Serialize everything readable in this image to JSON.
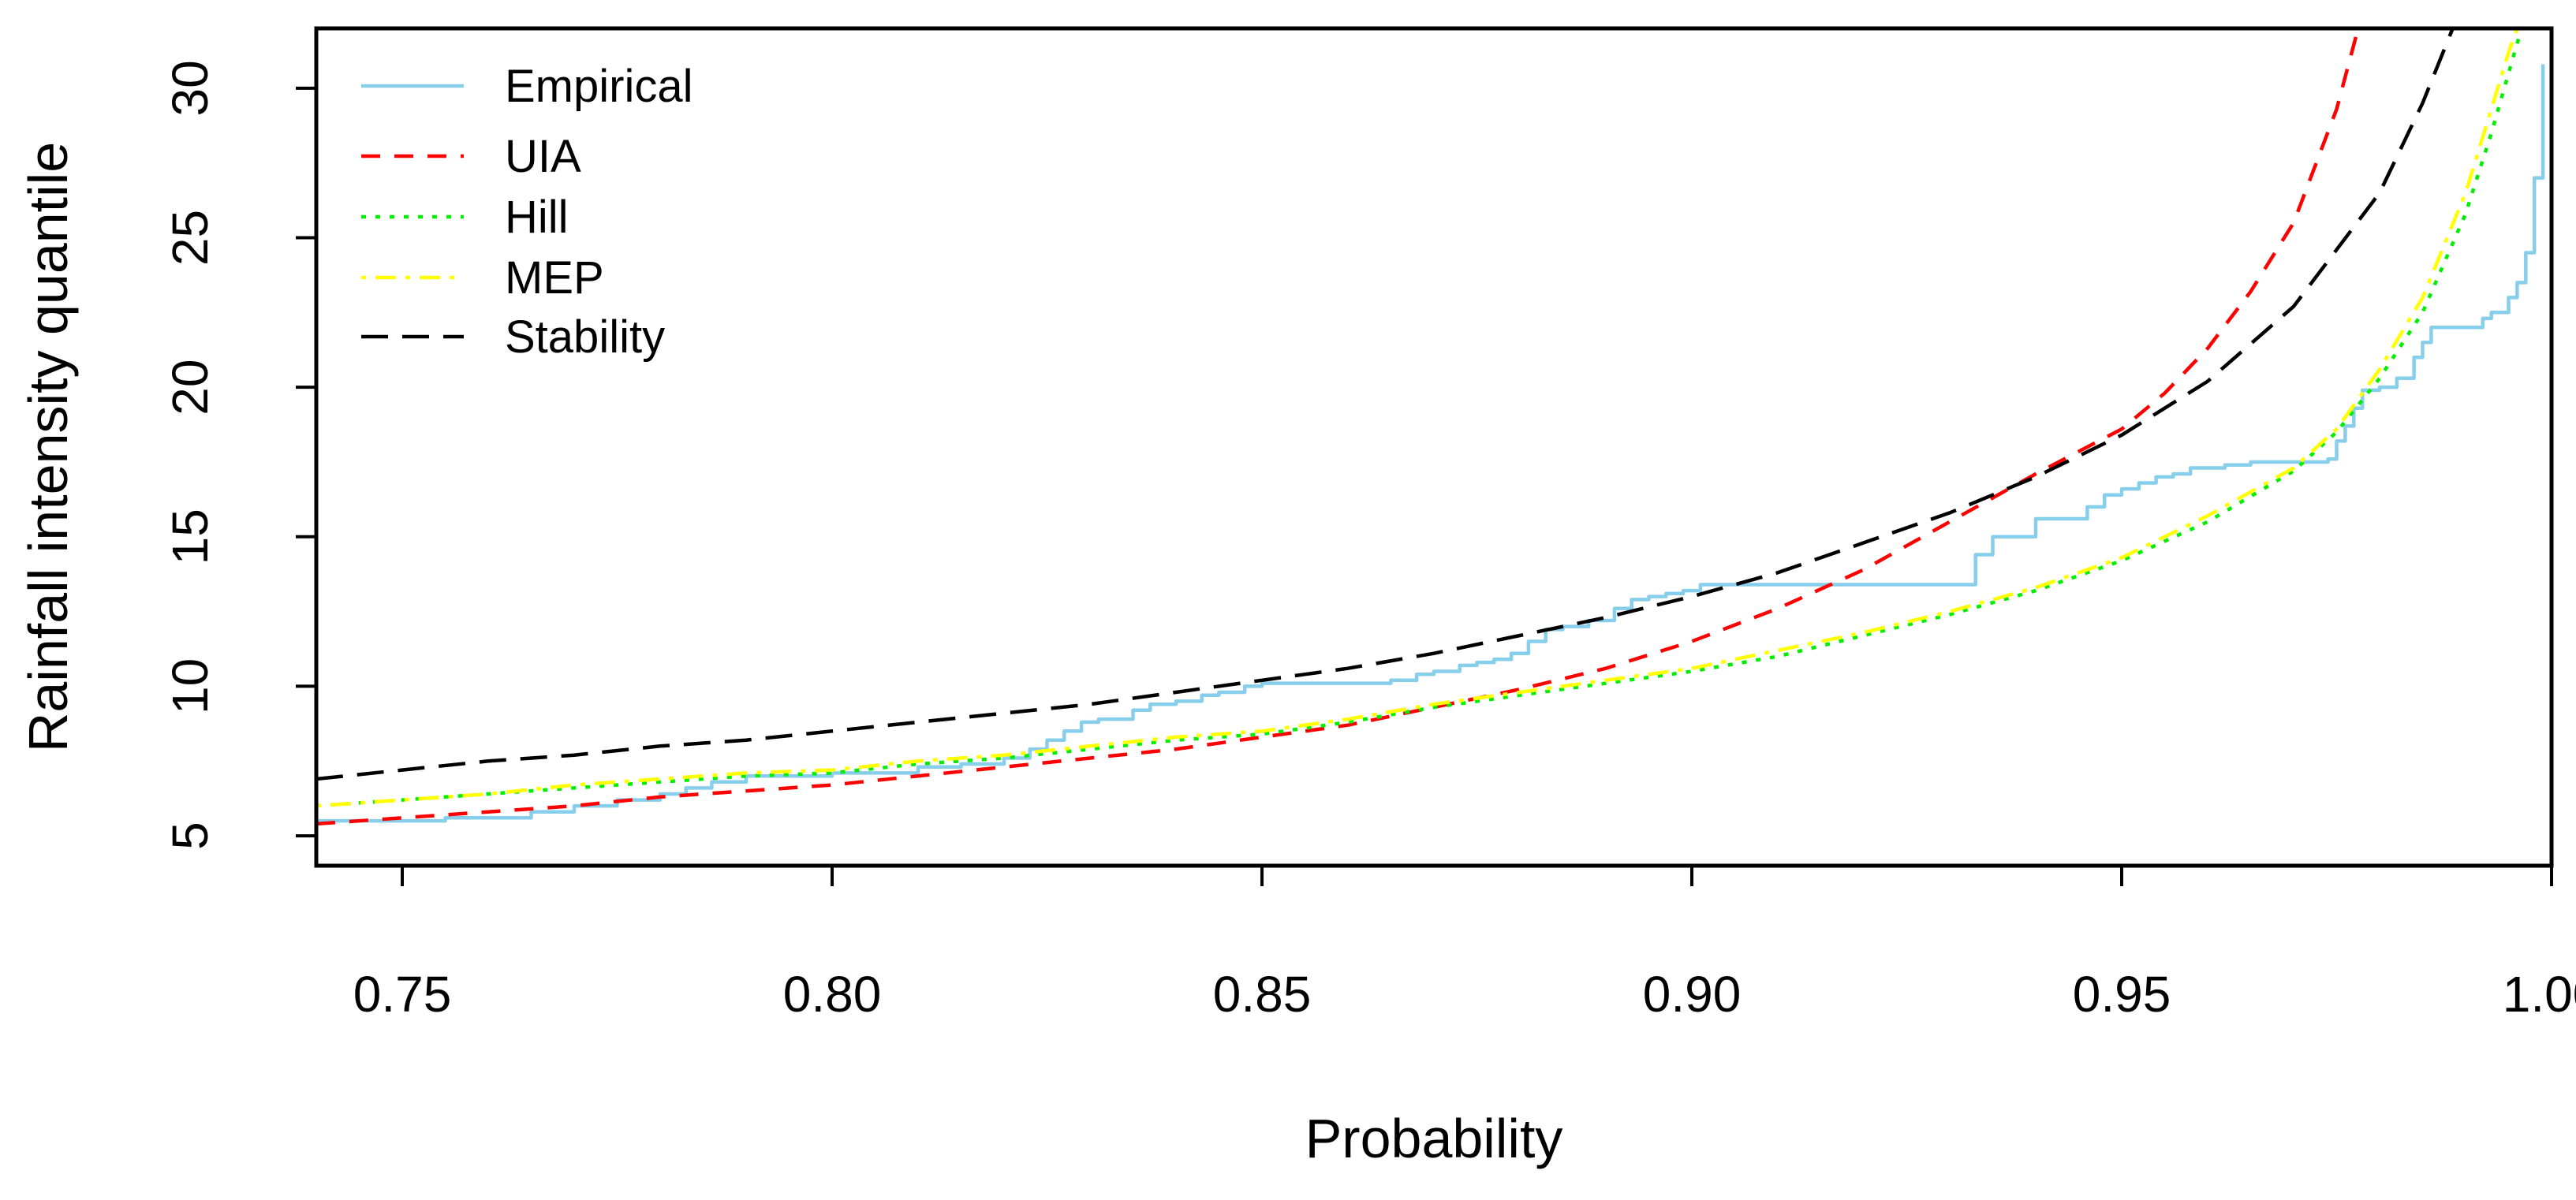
{
  "chart_data": {
    "type": "line",
    "title": "",
    "xlabel": "Probability",
    "ylabel": "Rainfall intensity quantile",
    "xlim": [
      0.74,
      1.0
    ],
    "ylim": [
      4.0,
      32.0
    ],
    "xticks": [
      0.75,
      0.8,
      0.85,
      0.9,
      0.95,
      1.0
    ],
    "xtick_labels": [
      "0.75",
      "0.80",
      "0.85",
      "0.90",
      "0.95",
      "1.00"
    ],
    "yticks": [
      5,
      10,
      15,
      20,
      25,
      30
    ],
    "ytick_labels": [
      "5",
      "10",
      "15",
      "20",
      "25",
      "30"
    ],
    "grid": false,
    "legend_position": "top-left",
    "series": [
      {
        "name": "Empirical",
        "color": "#87CEEB",
        "dash": "solid",
        "step": true,
        "x": [
          0.74,
          0.755,
          0.765,
          0.77,
          0.775,
          0.78,
          0.783,
          0.786,
          0.79,
          0.8,
          0.81,
          0.815,
          0.82,
          0.823,
          0.825,
          0.827,
          0.829,
          0.831,
          0.835,
          0.837,
          0.84,
          0.843,
          0.845,
          0.848,
          0.85,
          0.855,
          0.86,
          0.865,
          0.868,
          0.87,
          0.873,
          0.875,
          0.877,
          0.879,
          0.881,
          0.883,
          0.885,
          0.888,
          0.891,
          0.893,
          0.895,
          0.897,
          0.899,
          0.901,
          0.905,
          0.915,
          0.925,
          0.932,
          0.933,
          0.935,
          0.937,
          0.94,
          0.942,
          0.945,
          0.946,
          0.948,
          0.95,
          0.952,
          0.954,
          0.956,
          0.958,
          0.962,
          0.965,
          0.967,
          0.97,
          0.972,
          0.974,
          0.975,
          0.976,
          0.977,
          0.978,
          0.98,
          0.982,
          0.984,
          0.985,
          0.986,
          0.988,
          0.99,
          0.992,
          0.993,
          0.995,
          0.996,
          0.997,
          0.998,
          0.999
        ],
        "values": [
          5.5,
          5.6,
          5.8,
          6.0,
          6.2,
          6.4,
          6.6,
          6.8,
          7.0,
          7.1,
          7.3,
          7.4,
          7.6,
          7.9,
          8.2,
          8.5,
          8.8,
          8.9,
          9.2,
          9.4,
          9.5,
          9.7,
          9.8,
          10.0,
          10.1,
          10.1,
          10.1,
          10.2,
          10.4,
          10.5,
          10.7,
          10.8,
          10.9,
          11.1,
          11.5,
          11.9,
          12.0,
          12.2,
          12.6,
          12.9,
          13.0,
          13.1,
          13.2,
          13.4,
          13.4,
          13.4,
          13.4,
          13.4,
          14.4,
          15.0,
          15.0,
          15.6,
          15.6,
          15.6,
          16.0,
          16.4,
          16.6,
          16.8,
          17.0,
          17.1,
          17.3,
          17.4,
          17.5,
          17.5,
          17.5,
          17.5,
          17.6,
          18.2,
          18.7,
          19.3,
          19.9,
          20.0,
          20.3,
          21.0,
          21.5,
          22.0,
          22.0,
          22.0,
          22.3,
          22.5,
          23.0,
          23.5,
          24.5,
          27.0,
          30.8
        ]
      },
      {
        "name": "UIA",
        "color": "#FF0000",
        "dash": "medium-dash",
        "x": [
          0.74,
          0.75,
          0.76,
          0.77,
          0.78,
          0.79,
          0.8,
          0.81,
          0.82,
          0.83,
          0.84,
          0.85,
          0.86,
          0.87,
          0.88,
          0.89,
          0.9,
          0.91,
          0.92,
          0.93,
          0.94,
          0.95,
          0.955,
          0.96,
          0.965,
          0.97,
          0.975,
          0.9775
        ],
        "values": [
          5.4,
          5.6,
          5.8,
          6.0,
          6.3,
          6.5,
          6.7,
          7.0,
          7.3,
          7.6,
          7.9,
          8.3,
          8.7,
          9.3,
          9.9,
          10.6,
          11.5,
          12.6,
          13.9,
          15.5,
          17.1,
          18.6,
          19.8,
          21.3,
          23.2,
          25.5,
          29.3,
          32.0
        ]
      },
      {
        "name": "Hill",
        "color": "#00EE00",
        "dash": "dotted",
        "x": [
          0.74,
          0.75,
          0.76,
          0.77,
          0.78,
          0.79,
          0.8,
          0.81,
          0.82,
          0.83,
          0.84,
          0.85,
          0.86,
          0.87,
          0.88,
          0.89,
          0.9,
          0.91,
          0.92,
          0.93,
          0.94,
          0.95,
          0.96,
          0.97,
          0.975,
          0.98,
          0.985,
          0.99,
          0.993,
          0.995,
          0.9965
        ],
        "values": [
          6.0,
          6.2,
          6.4,
          6.6,
          6.8,
          7.0,
          7.1,
          7.4,
          7.6,
          7.9,
          8.2,
          8.4,
          8.8,
          9.3,
          9.7,
          10.1,
          10.5,
          11.0,
          11.7,
          12.4,
          13.2,
          14.2,
          15.5,
          17.2,
          18.5,
          20.3,
          22.5,
          25.8,
          28.5,
          30.5,
          32.0
        ]
      },
      {
        "name": "MEP",
        "color": "#FFFF00",
        "dash": "dot-dash",
        "x": [
          0.74,
          0.75,
          0.76,
          0.77,
          0.78,
          0.79,
          0.8,
          0.81,
          0.82,
          0.83,
          0.84,
          0.85,
          0.86,
          0.87,
          0.88,
          0.89,
          0.9,
          0.91,
          0.92,
          0.93,
          0.94,
          0.95,
          0.96,
          0.97,
          0.975,
          0.98,
          0.985,
          0.99,
          0.993,
          0.995,
          0.996
        ],
        "values": [
          6.0,
          6.2,
          6.4,
          6.7,
          6.9,
          7.1,
          7.2,
          7.5,
          7.7,
          8.0,
          8.3,
          8.5,
          8.9,
          9.4,
          9.8,
          10.2,
          10.6,
          11.2,
          11.8,
          12.5,
          13.3,
          14.3,
          15.7,
          17.3,
          18.6,
          20.6,
          23.0,
          26.5,
          29.3,
          31.2,
          32.0
        ]
      },
      {
        "name": "Stability",
        "color": "#000000",
        "dash": "long-dash",
        "x": [
          0.74,
          0.75,
          0.76,
          0.77,
          0.78,
          0.79,
          0.8,
          0.81,
          0.82,
          0.83,
          0.84,
          0.85,
          0.86,
          0.87,
          0.88,
          0.89,
          0.9,
          0.91,
          0.92,
          0.93,
          0.94,
          0.95,
          0.96,
          0.97,
          0.98,
          0.985,
          0.9885
        ],
        "values": [
          6.9,
          7.2,
          7.5,
          7.7,
          8.0,
          8.2,
          8.5,
          8.8,
          9.1,
          9.4,
          9.8,
          10.2,
          10.6,
          11.1,
          11.7,
          12.3,
          13.0,
          13.8,
          14.8,
          15.8,
          17.0,
          18.4,
          20.2,
          22.7,
          26.5,
          29.5,
          32.0
        ]
      }
    ]
  }
}
